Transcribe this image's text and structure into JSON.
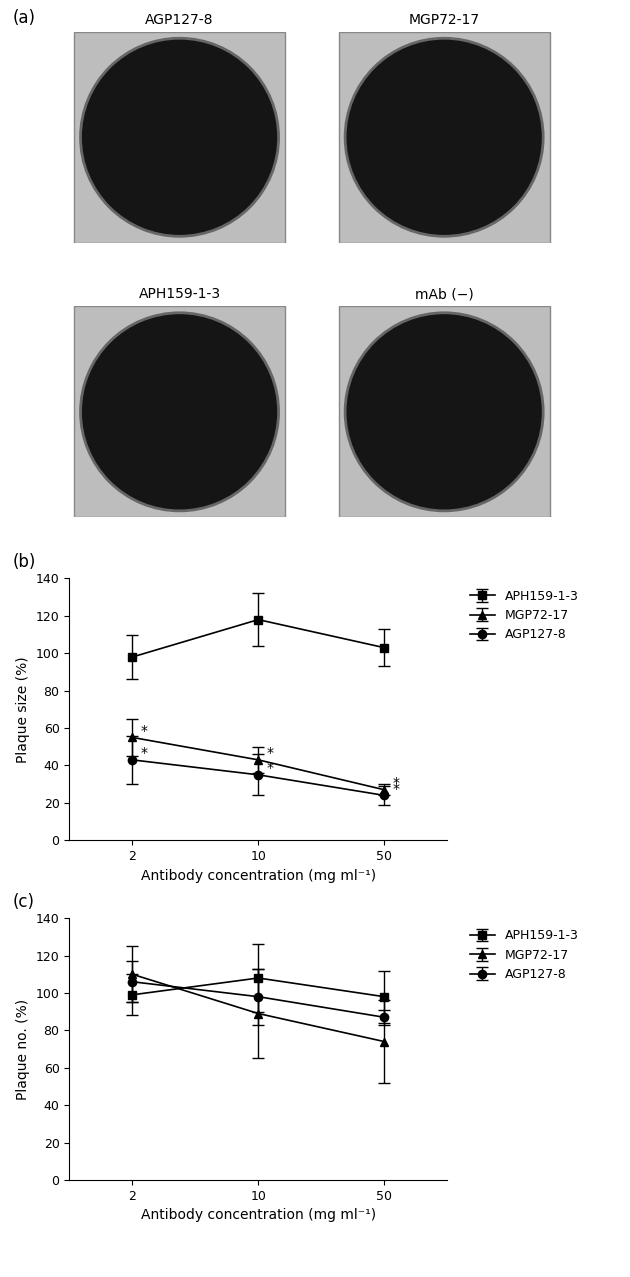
{
  "panel_a": {
    "label": "(a)",
    "images": [
      "AGP127-8",
      "MGP72-17",
      "APH159-1-3",
      "mAb (−)"
    ]
  },
  "chart_data": [
    {
      "type": "line",
      "title": "(b)",
      "x_label": "Antibody concentration (mg ml⁻¹)",
      "y_label": "Plaque size (%)",
      "categories": [
        "2",
        "10",
        "50"
      ],
      "ylim": [
        0,
        140
      ],
      "yticks": [
        0,
        20,
        40,
        60,
        80,
        100,
        120,
        140
      ],
      "legend": "upper left",
      "series": [
        {
          "name": "APH159-1-3",
          "color": "#000000",
          "marker": "square",
          "values": [
            98,
            118,
            103
          ],
          "errors": [
            12,
            14,
            10
          ]
        },
        {
          "name": "MGP72-17",
          "color": "#000000",
          "marker": "triangle",
          "values": [
            55,
            43,
            27
          ],
          "errors": [
            10,
            7,
            3
          ],
          "point_labels": [
            "*",
            "*",
            "*"
          ]
        },
        {
          "name": "AGP127-8",
          "color": "#000000",
          "marker": "circle",
          "values": [
            43,
            35,
            24
          ],
          "errors": [
            13,
            11,
            5
          ],
          "point_labels": [
            "*",
            "*",
            "*"
          ]
        }
      ]
    },
    {
      "type": "line",
      "title": "(c)",
      "x_label": "Antibody concentration (mg ml⁻¹)",
      "y_label": "Plaque no. (%)",
      "categories": [
        "2",
        "10",
        "50"
      ],
      "ylim": [
        0,
        140
      ],
      "yticks": [
        0,
        20,
        40,
        60,
        80,
        100,
        120,
        140
      ],
      "legend": "upper left",
      "series": [
        {
          "name": "APH159-1-3",
          "color": "#000000",
          "marker": "square",
          "values": [
            99,
            108,
            98
          ],
          "errors": [
            11,
            18,
            14
          ]
        },
        {
          "name": "MGP72-17",
          "color": "#000000",
          "marker": "triangle",
          "values": [
            110,
            89,
            74
          ],
          "errors": [
            15,
            24,
            22
          ]
        },
        {
          "name": "AGP127-8",
          "color": "#000000",
          "marker": "circle",
          "values": [
            106,
            98,
            87
          ],
          "errors": [
            11,
            15,
            4
          ]
        }
      ]
    }
  ]
}
